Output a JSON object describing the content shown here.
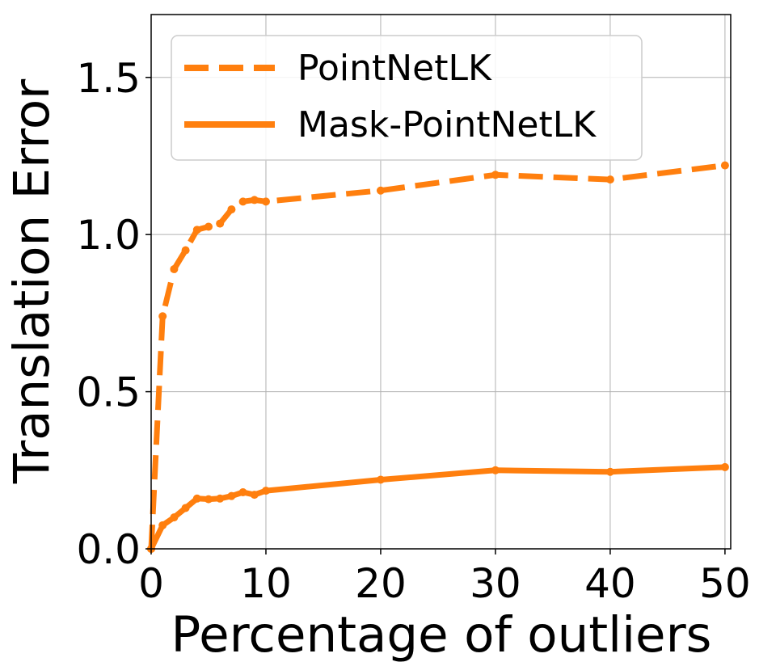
{
  "chart_data": {
    "type": "line",
    "xlabel": "Percentage of outliers",
    "ylabel": "Translation Error",
    "xlim": [
      0,
      50.5
    ],
    "ylim": [
      0,
      1.7
    ],
    "xticks": [
      0,
      10,
      20,
      30,
      40,
      50
    ],
    "yticks": [
      0.0,
      0.5,
      1.0,
      1.5
    ],
    "xtick_labels": [
      "0",
      "10",
      "20",
      "30",
      "40",
      "50"
    ],
    "ytick_labels": [
      "0.0",
      "0.5",
      "1.0",
      "1.5"
    ],
    "grid": true,
    "legend_position": "top-left",
    "color": "#ff7f0e",
    "x": [
      0,
      1,
      2,
      3,
      4,
      5,
      6,
      7,
      8,
      9,
      10,
      20,
      30,
      40,
      50
    ],
    "series": [
      {
        "name": "PointNetLK",
        "line_style": "dashed",
        "values": [
          0.0,
          0.74,
          0.89,
          0.95,
          1.015,
          1.025,
          1.035,
          1.08,
          1.105,
          1.11,
          1.105,
          1.14,
          1.19,
          1.175,
          1.22
        ]
      },
      {
        "name": "Mask-PointNetLK",
        "line_style": "solid",
        "values": [
          0.0,
          0.075,
          0.1,
          0.13,
          0.16,
          0.158,
          0.16,
          0.168,
          0.18,
          0.172,
          0.185,
          0.22,
          0.25,
          0.245,
          0.26
        ]
      }
    ]
  }
}
